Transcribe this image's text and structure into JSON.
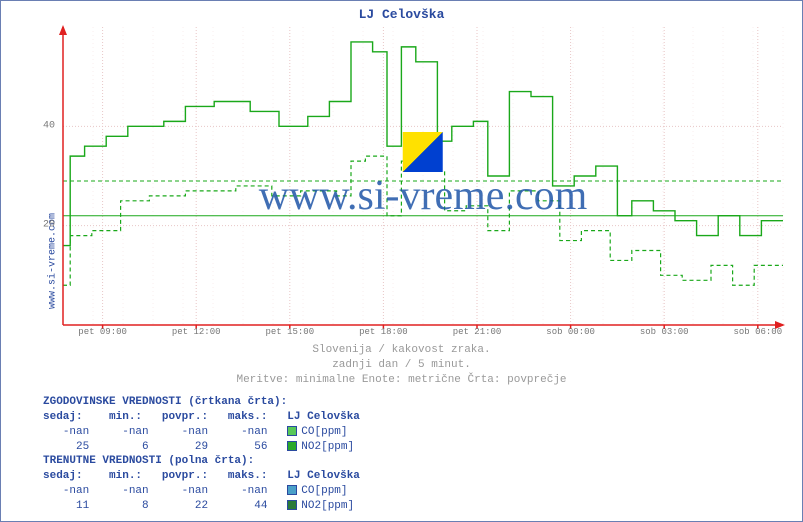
{
  "title": "LJ Celovška",
  "outer_ylabel": "www.si-vreme.com",
  "watermark_text": "www.si-vreme.com",
  "subtitle": {
    "line1": "Slovenija / kakovost zraka.",
    "line2": "zadnji dan / 5 minut.",
    "line3": "Meritve: minimalne  Enote: metrične  Črta: povprečje"
  },
  "chart": {
    "type": "line",
    "background_color": "#ffffff",
    "axis_color": "#e02020",
    "grid_major_color": "#e8c6c6",
    "grid_minor_color": "#f2dede",
    "series1_color": "#1aa81a",
    "series1_dash": "solid",
    "series2_color": "#1aa81a",
    "series2_dash": "dash",
    "avg1_color": "#1aa81a",
    "avg1_y": 29,
    "avg2_color": "#1aa81a",
    "avg2_y": 22,
    "ylim": [
      0,
      60
    ],
    "yticks": [
      20,
      40
    ],
    "xticks": [
      {
        "pos": 0.055,
        "label": "pet 09:00"
      },
      {
        "pos": 0.185,
        "label": "pet 12:00"
      },
      {
        "pos": 0.315,
        "label": "pet 15:00"
      },
      {
        "pos": 0.445,
        "label": "pet 18:00"
      },
      {
        "pos": 0.575,
        "label": "pet 21:00"
      },
      {
        "pos": 0.705,
        "label": "sob 00:00"
      },
      {
        "pos": 0.835,
        "label": "sob 03:00"
      },
      {
        "pos": 0.965,
        "label": "sob 06:00"
      }
    ],
    "series1": [
      [
        0.0,
        16
      ],
      [
        0.01,
        16
      ],
      [
        0.01,
        34
      ],
      [
        0.03,
        34
      ],
      [
        0.03,
        36
      ],
      [
        0.06,
        36
      ],
      [
        0.06,
        38
      ],
      [
        0.09,
        38
      ],
      [
        0.09,
        40
      ],
      [
        0.14,
        40
      ],
      [
        0.14,
        41
      ],
      [
        0.17,
        41
      ],
      [
        0.17,
        44
      ],
      [
        0.21,
        44
      ],
      [
        0.21,
        45
      ],
      [
        0.26,
        45
      ],
      [
        0.26,
        43
      ],
      [
        0.3,
        43
      ],
      [
        0.3,
        40
      ],
      [
        0.34,
        40
      ],
      [
        0.34,
        42
      ],
      [
        0.37,
        42
      ],
      [
        0.37,
        45
      ],
      [
        0.4,
        45
      ],
      [
        0.4,
        57
      ],
      [
        0.43,
        57
      ],
      [
        0.43,
        55
      ],
      [
        0.45,
        55
      ],
      [
        0.45,
        36
      ],
      [
        0.47,
        36
      ],
      [
        0.47,
        56
      ],
      [
        0.49,
        56
      ],
      [
        0.49,
        53
      ],
      [
        0.52,
        53
      ],
      [
        0.52,
        37
      ],
      [
        0.54,
        37
      ],
      [
        0.54,
        40
      ],
      [
        0.57,
        40
      ],
      [
        0.57,
        41
      ],
      [
        0.59,
        41
      ],
      [
        0.59,
        30
      ],
      [
        0.62,
        30
      ],
      [
        0.62,
        47
      ],
      [
        0.65,
        47
      ],
      [
        0.65,
        46
      ],
      [
        0.68,
        46
      ],
      [
        0.68,
        28
      ],
      [
        0.71,
        28
      ],
      [
        0.71,
        30
      ],
      [
        0.74,
        30
      ],
      [
        0.74,
        32
      ],
      [
        0.77,
        32
      ],
      [
        0.77,
        22
      ],
      [
        0.79,
        22
      ],
      [
        0.79,
        25
      ],
      [
        0.82,
        25
      ],
      [
        0.82,
        23
      ],
      [
        0.85,
        23
      ],
      [
        0.85,
        21
      ],
      [
        0.88,
        21
      ],
      [
        0.88,
        18
      ],
      [
        0.91,
        18
      ],
      [
        0.91,
        22
      ],
      [
        0.94,
        22
      ],
      [
        0.94,
        18
      ],
      [
        0.97,
        18
      ],
      [
        0.97,
        21
      ],
      [
        1.0,
        21
      ]
    ],
    "series2": [
      [
        0.0,
        8
      ],
      [
        0.01,
        8
      ],
      [
        0.01,
        18
      ],
      [
        0.04,
        18
      ],
      [
        0.04,
        19
      ],
      [
        0.08,
        19
      ],
      [
        0.08,
        25
      ],
      [
        0.12,
        25
      ],
      [
        0.12,
        26
      ],
      [
        0.17,
        26
      ],
      [
        0.17,
        27
      ],
      [
        0.24,
        27
      ],
      [
        0.24,
        28
      ],
      [
        0.29,
        28
      ],
      [
        0.29,
        26
      ],
      [
        0.33,
        26
      ],
      [
        0.33,
        27
      ],
      [
        0.38,
        27
      ],
      [
        0.38,
        26
      ],
      [
        0.4,
        26
      ],
      [
        0.4,
        33
      ],
      [
        0.42,
        33
      ],
      [
        0.42,
        34
      ],
      [
        0.45,
        34
      ],
      [
        0.45,
        22
      ],
      [
        0.47,
        22
      ],
      [
        0.47,
        33
      ],
      [
        0.5,
        33
      ],
      [
        0.5,
        31
      ],
      [
        0.53,
        31
      ],
      [
        0.53,
        23
      ],
      [
        0.56,
        23
      ],
      [
        0.56,
        24
      ],
      [
        0.59,
        24
      ],
      [
        0.59,
        19
      ],
      [
        0.62,
        19
      ],
      [
        0.62,
        27
      ],
      [
        0.66,
        27
      ],
      [
        0.66,
        25
      ],
      [
        0.69,
        25
      ],
      [
        0.69,
        17
      ],
      [
        0.72,
        17
      ],
      [
        0.72,
        19
      ],
      [
        0.76,
        19
      ],
      [
        0.76,
        13
      ],
      [
        0.79,
        13
      ],
      [
        0.79,
        15
      ],
      [
        0.83,
        15
      ],
      [
        0.83,
        10
      ],
      [
        0.86,
        10
      ],
      [
        0.86,
        9
      ],
      [
        0.9,
        9
      ],
      [
        0.9,
        12
      ],
      [
        0.93,
        12
      ],
      [
        0.93,
        8
      ],
      [
        0.96,
        8
      ],
      [
        0.96,
        12
      ],
      [
        1.0,
        12
      ]
    ]
  },
  "tables": {
    "hist_title": "ZGODOVINSKE VREDNOSTI (črtkana črta):",
    "curr_title": "TRENUTNE VREDNOSTI (polna črta):",
    "header": [
      "sedaj:",
      "min.:",
      "povpr.:",
      "maks.:"
    ],
    "station": "LJ Celovška",
    "hist": {
      "co": {
        "label": "CO[ppm]",
        "sedaj": "-nan",
        "min": "-nan",
        "povpr": "-nan",
        "maks": "-nan",
        "swatch": "#58c858"
      },
      "no2": {
        "label": "NO2[ppm]",
        "sedaj": "25",
        "min": "6",
        "povpr": "29",
        "maks": "56",
        "swatch": "#2aa82a"
      }
    },
    "curr": {
      "co": {
        "label": "CO[ppm]",
        "sedaj": "-nan",
        "min": "-nan",
        "povpr": "-nan",
        "maks": "-nan",
        "swatch": "#4aa0c8"
      },
      "no2": {
        "label": "NO2[ppm]",
        "sedaj": "11",
        "min": "8",
        "povpr": "22",
        "maks": "44",
        "swatch": "#2a7a3a"
      }
    }
  }
}
